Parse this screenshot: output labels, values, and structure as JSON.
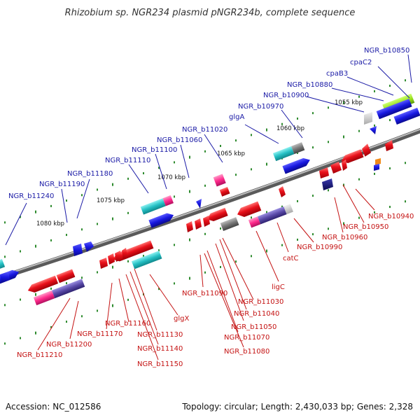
{
  "header": {
    "title": "Rhizobium sp. NGR234 plasmid pNGR234b, complete sequence"
  },
  "footer": {
    "accession": "Accession: NC_012586",
    "summary": "Topology: circular; Length: 2,430,033 bp; Genes: 2,328"
  },
  "colors": {
    "backbone": "#888888",
    "tick": "#2e8b2e",
    "red_gene": "#e8101a",
    "blue_gene": "#1818e0",
    "teal_gene": "#25c0c4",
    "purple_gene": "#5a4aa8",
    "magenta_gene": "#ff2a8c",
    "gray_gene": "#777777",
    "green_gene": "#99e020",
    "orange_gene": "#f08a1a",
    "label_blue": "#1a1aa6",
    "label_red": "#c41212"
  },
  "kbp_markers": [
    "1055 kbp",
    "1060 kbp",
    "1065 kbp",
    "1070 kbp",
    "1075 kbp",
    "1080 kbp"
  ],
  "blue_labels": [
    "NGR_b10850",
    "cpaC2",
    "cpaB3",
    "NGR_b10880",
    "NGR_b10900",
    "NGR_b10970",
    "glgA",
    "NGR_b11020",
    "NGR_b11060",
    "NGR_b11100",
    "NGR_b11110",
    "NGR_b11180",
    "NGR_b11190",
    "NGR_b11240"
  ],
  "red_labels": [
    "NGR_b10940",
    "NGR_b10950",
    "NGR_b10960",
    "NGR_b10990",
    "catC",
    "ligC",
    "NGR_b11030",
    "NGR_b11040",
    "NGR_b11050",
    "NGR_b11070",
    "NGR_b11080",
    "NGR_b11090",
    "glgX",
    "NGR_b11130",
    "NGR_b11140",
    "NGR_b11150",
    "NGR_b11160",
    "NGR_b11170",
    "NGR_b11200",
    "NGR_b11210"
  ]
}
